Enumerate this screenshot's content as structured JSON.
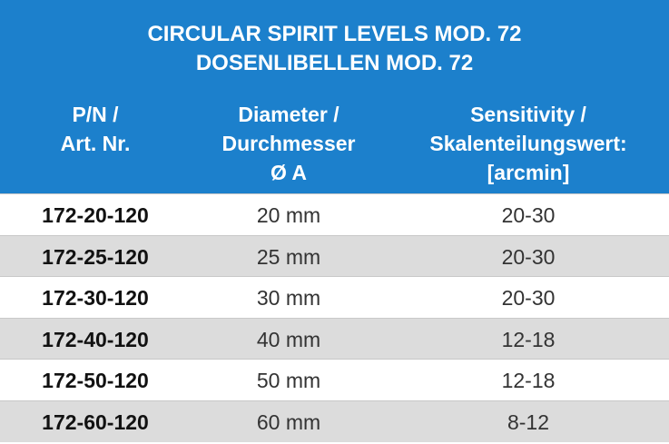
{
  "header": {
    "title": [
      "CIRCULAR SPIRIT LEVELS MOD. 72",
      "DOSENLIBELLEN MOD. 72"
    ]
  },
  "table": {
    "columns": [
      [
        "P/N /",
        "Art. Nr."
      ],
      [
        "Diameter /",
        "Durchmesser",
        "Ø A"
      ],
      [
        "Sensitivity /",
        "Skalenteilungswert:",
        "[arcmin]"
      ]
    ],
    "rows": [
      [
        "172-20-120",
        "20 mm",
        "20-30"
      ],
      [
        "172-25-120",
        "25 mm",
        "20-30"
      ],
      [
        "172-30-120",
        "30 mm",
        "20-30"
      ],
      [
        "172-40-120",
        "40 mm",
        "12-18"
      ],
      [
        "172-50-120",
        "50 mm",
        "12-18"
      ],
      [
        "172-60-120",
        "60 mm",
        "8-12"
      ]
    ]
  }
}
